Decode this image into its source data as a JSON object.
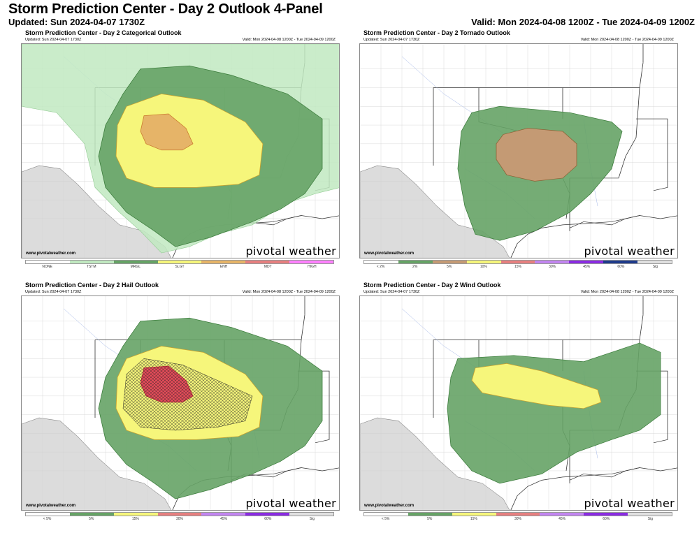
{
  "header": {
    "title": "Storm Prediction Center - Day 2 Outlook 4-Panel",
    "updated": "Updated: Sun 2024-04-07 1730Z",
    "valid": "Valid: Mon 2024-04-08 1200Z - Tue 2024-04-09 1200Z"
  },
  "panels": [
    {
      "title": "Storm Prediction Center - Day 2 Categorical Outlook",
      "updated": "Updated: Sun 2024-04-07 1730Z",
      "valid": "Valid: Mon 2024-04-08 1200Z - Tue 2024-04-09 1200Z",
      "site": "www.pivotalweather.com",
      "brand": "pivotal weather",
      "legend": [
        {
          "label": "NONE",
          "color": "#ffffff"
        },
        {
          "label": "TSTM",
          "color": "#c1e9c1"
        },
        {
          "label": "MRGL",
          "color": "#66a366"
        },
        {
          "label": "SLGT",
          "color": "#f6f67b"
        },
        {
          "label": "ENH",
          "color": "#e6b468"
        },
        {
          "label": "MDT",
          "color": "#e67f7f"
        },
        {
          "label": "HIGH",
          "color": "#ff80ff"
        }
      ]
    },
    {
      "title": "Storm Prediction Center - Day 2 Tornado Outlook",
      "updated": "Updated: Sun 2024-04-07 1730Z",
      "valid": "Valid: Mon 2024-04-08 1200Z - Tue 2024-04-09 1200Z",
      "site": "www.pivotalweather.com",
      "brand": "pivotal weather",
      "legend": [
        {
          "label": "< 2%",
          "color": "#ffffff"
        },
        {
          "label": "2%",
          "color": "#66a366"
        },
        {
          "label": "5%",
          "color": "#c49a74"
        },
        {
          "label": "10%",
          "color": "#f6f67b"
        },
        {
          "label": "15%",
          "color": "#e67f7f"
        },
        {
          "label": "30%",
          "color": "#c285f0"
        },
        {
          "label": "45%",
          "color": "#8a2be2"
        },
        {
          "label": "60%",
          "color": "#1e3a8a"
        },
        {
          "label": "Sig",
          "color": "#e0e0e0"
        }
      ]
    },
    {
      "title": "Storm Prediction Center - Day 2 Hail Outlook",
      "updated": "Updated: Sun 2024-04-07 1730Z",
      "valid": "Valid: Mon 2024-04-08 1200Z - Tue 2024-04-09 1200Z",
      "site": "www.pivotalweather.com",
      "brand": "pivotal weather",
      "legend": [
        {
          "label": "< 5%",
          "color": "#ffffff"
        },
        {
          "label": "5%",
          "color": "#66a366"
        },
        {
          "label": "15%",
          "color": "#f6f67b"
        },
        {
          "label": "30%",
          "color": "#e67f7f"
        },
        {
          "label": "45%",
          "color": "#c285f0"
        },
        {
          "label": "60%",
          "color": "#8a2be2"
        },
        {
          "label": "Sig",
          "color": "#e0e0e0"
        }
      ]
    },
    {
      "title": "Storm Prediction Center - Day 2 Wind Outlook",
      "updated": "Updated: Sun 2024-04-07 1730Z",
      "valid": "Valid: Mon 2024-04-08 1200Z - Tue 2024-04-09 1200Z",
      "site": "www.pivotalweather.com",
      "brand": "pivotal weather",
      "legend": [
        {
          "label": "< 5%",
          "color": "#ffffff"
        },
        {
          "label": "5%",
          "color": "#66a366"
        },
        {
          "label": "15%",
          "color": "#f6f67b"
        },
        {
          "label": "30%",
          "color": "#e67f7f"
        },
        {
          "label": "45%",
          "color": "#c285f0"
        },
        {
          "label": "60%",
          "color": "#8a2be2"
        },
        {
          "label": "Sig",
          "color": "#e0e0e0"
        }
      ]
    }
  ]
}
